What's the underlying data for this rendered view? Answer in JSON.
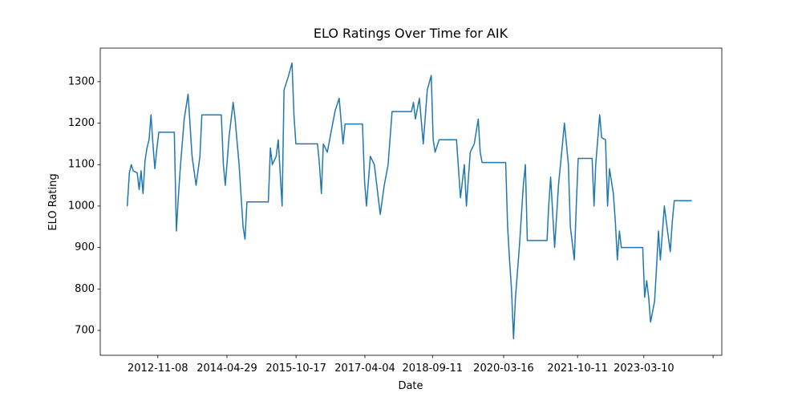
{
  "chart_data": {
    "type": "line",
    "title": "ELO Ratings Over Time for AIK",
    "x_label": "Date",
    "y_label": "ELO Rating",
    "x": [
      "2012-03-16",
      "2012-04-01",
      "2012-04-16",
      "2012-05-01",
      "2012-06-01",
      "2012-06-16",
      "2012-07-01",
      "2012-07-16",
      "2012-08-01",
      "2012-08-16",
      "2012-09-01",
      "2012-09-16",
      "2012-10-01",
      "2012-10-16",
      "2012-11-01",
      "2012-11-16",
      "2013-03-16",
      "2013-04-01",
      "2013-04-16",
      "2013-05-01",
      "2013-06-01",
      "2013-07-01",
      "2013-08-01",
      "2013-09-01",
      "2013-10-01",
      "2013-10-16",
      "2014-03-16",
      "2014-04-01",
      "2014-04-16",
      "2014-05-16",
      "2014-06-16",
      "2014-07-01",
      "2014-08-01",
      "2014-09-01",
      "2014-09-16",
      "2014-10-01",
      "2015-03-16",
      "2015-04-01",
      "2015-04-16",
      "2015-05-16",
      "2015-06-01",
      "2015-07-01",
      "2015-07-16",
      "2015-08-16",
      "2015-09-16",
      "2015-10-01",
      "2015-10-16",
      "2016-04-01",
      "2016-04-16",
      "2016-05-01",
      "2016-05-16",
      "2016-06-16",
      "2016-07-16",
      "2016-08-16",
      "2016-09-16",
      "2016-10-16",
      "2016-11-01",
      "2017-03-16",
      "2017-04-01",
      "2017-04-16",
      "2017-05-16",
      "2017-06-16",
      "2017-08-01",
      "2017-09-01",
      "2017-10-01",
      "2017-11-01",
      "2018-04-01",
      "2018-04-16",
      "2018-05-01",
      "2018-06-01",
      "2018-07-01",
      "2018-08-01",
      "2018-09-01",
      "2018-09-16",
      "2018-10-01",
      "2018-11-01",
      "2019-03-16",
      "2019-04-16",
      "2019-05-16",
      "2019-06-01",
      "2019-07-01",
      "2019-08-01",
      "2019-09-01",
      "2019-09-16",
      "2019-10-01",
      "2020-04-01",
      "2020-04-16",
      "2020-05-01",
      "2020-05-16",
      "2020-06-01",
      "2020-06-16",
      "2020-07-16",
      "2020-08-16",
      "2020-09-01",
      "2020-09-16",
      "2021-02-16",
      "2021-03-01",
      "2021-03-16",
      "2021-04-16",
      "2021-05-16",
      "2021-06-16",
      "2021-07-01",
      "2021-08-01",
      "2021-08-16",
      "2021-09-16",
      "2021-10-01",
      "2021-10-16",
      "2022-02-01",
      "2022-02-16",
      "2022-03-01",
      "2022-04-01",
      "2022-04-16",
      "2022-05-16",
      "2022-06-01",
      "2022-06-16",
      "2022-07-16",
      "2022-08-01",
      "2022-08-16",
      "2022-09-01",
      "2022-09-16",
      "2023-03-01",
      "2023-03-16",
      "2023-04-01",
      "2023-04-16",
      "2023-05-01",
      "2023-06-01",
      "2023-06-16",
      "2023-07-01",
      "2023-07-16",
      "2023-08-16",
      "2023-09-01",
      "2023-10-01",
      "2023-10-16",
      "2023-11-01",
      "2024-03-16"
    ],
    "series": [
      {
        "name": "AIK",
        "color": "#1f77b4",
        "values": [
          1000,
          1080,
          1100,
          1085,
          1080,
          1040,
          1085,
          1030,
          1110,
          1140,
          1160,
          1220,
          1150,
          1090,
          1140,
          1178,
          1178,
          940,
          1020,
          1090,
          1210,
          1270,
          1120,
          1050,
          1120,
          1220,
          1220,
          1100,
          1050,
          1170,
          1250,
          1210,
          1100,
          950,
          920,
          1010,
          1010,
          1140,
          1100,
          1120,
          1160,
          1000,
          1280,
          1310,
          1345,
          1220,
          1150,
          1150,
          1100,
          1030,
          1150,
          1130,
          1180,
          1230,
          1260,
          1150,
          1198,
          1198,
          1060,
          1000,
          1120,
          1100,
          980,
          1050,
          1100,
          1228,
          1228,
          1250,
          1210,
          1260,
          1150,
          1280,
          1315,
          1160,
          1130,
          1160,
          1160,
          1020,
          1100,
          1000,
          1130,
          1150,
          1210,
          1130,
          1105,
          1105,
          950,
          870,
          800,
          680,
          780,
          900,
          1050,
          1100,
          917,
          917,
          1000,
          1070,
          900,
          1050,
          1150,
          1200,
          1100,
          950,
          870,
          1000,
          1115,
          1115,
          1000,
          1100,
          1220,
          1165,
          1160,
          1000,
          1090,
          1030,
          960,
          870,
          940,
          900,
          900,
          780,
          820,
          780,
          720,
          770,
          850,
          940,
          870,
          1000,
          960,
          890,
          960,
          1013,
          1013
        ]
      }
    ],
    "xlim": [
      "2011-08-19",
      "2024-11-04"
    ],
    "xticks": [
      "2012-11-08",
      "2014-04-29",
      "2015-10-17",
      "2017-04-04",
      "2018-09-11",
      "2020-03-16",
      "2021-10-11",
      "2023-03-10",
      {
        "value": "2024-08-28",
        "label": null
      }
    ],
    "ylim": [
      640,
      1381
    ],
    "yticks": [
      700,
      800,
      900,
      1000,
      1100,
      1200,
      1300
    ]
  }
}
